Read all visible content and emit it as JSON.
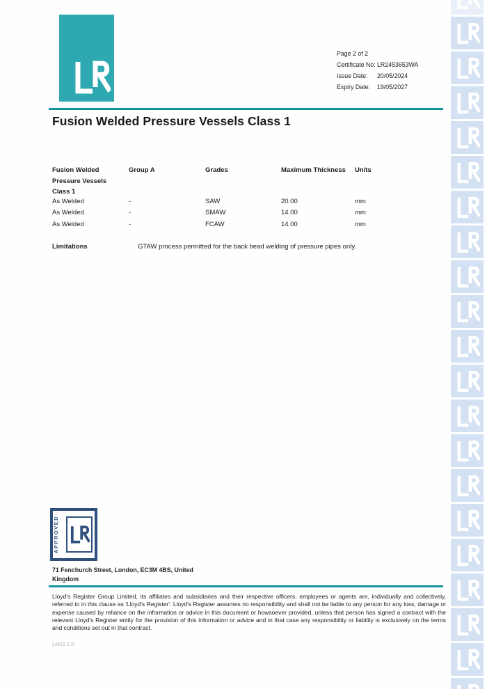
{
  "meta": {
    "page_label": "Page 2 of 2",
    "certificate_label": "Certificate No:",
    "certificate_value": "LR2453653WA",
    "issue_label": "Issue Date:",
    "issue_value": "20/05/2024",
    "expiry_label": "Expiry Date:",
    "expiry_value": "19/05/2027"
  },
  "title": "Fusion Welded Pressure Vessels Class 1",
  "table": {
    "headers": [
      "Fusion Welded Pressure Vessels Class 1",
      "Group A",
      "Grades",
      "Maximum Thickness",
      "Units"
    ],
    "rows": [
      [
        "As Welded",
        "-",
        "SAW",
        "20.00",
        "mm"
      ],
      [
        "As Welded",
        "-",
        "SMAW",
        "14.00",
        "mm"
      ],
      [
        "As Welded",
        "-",
        "FCAW",
        "14.00",
        "mm"
      ]
    ]
  },
  "limitations": {
    "label": "Limitations",
    "text": "GTAW process permitted for the back bead welding of pressure pipes only."
  },
  "stamp": {
    "text": "APPROVED",
    "glyph": "LR"
  },
  "footer": {
    "address": "71 Fenchurch Street, London, EC3M 4BS, United Kingdom",
    "legal": "Lloyd's Register Group Limited, its affiliates and subsidiaries and their respective officers, employees or agents are, individually and collectively, referred to in this clause as 'Lloyd's Register'. Lloyd's Register assumes no responsibility and shall not be liable to any person for any loss, damage or expense caused by reliance on the information or advice in this document or howsoever provided, unless that person has signed a contract with the relevant Lloyd's Register entity for the provision of this information or advice and in that case any responsibility or liability is exclusively on the terms and conditions set out in that contract.",
    "doc_code": "LM02 2.0"
  },
  "logo": {
    "glyph": "LR"
  },
  "colors": {
    "teal": "#2EA8B1",
    "rule_teal": "#15949E",
    "navy": "#30507C",
    "tile_blue": "#D3E1F3"
  },
  "watermark": {
    "tile_count": 21,
    "glyph": "LR"
  }
}
